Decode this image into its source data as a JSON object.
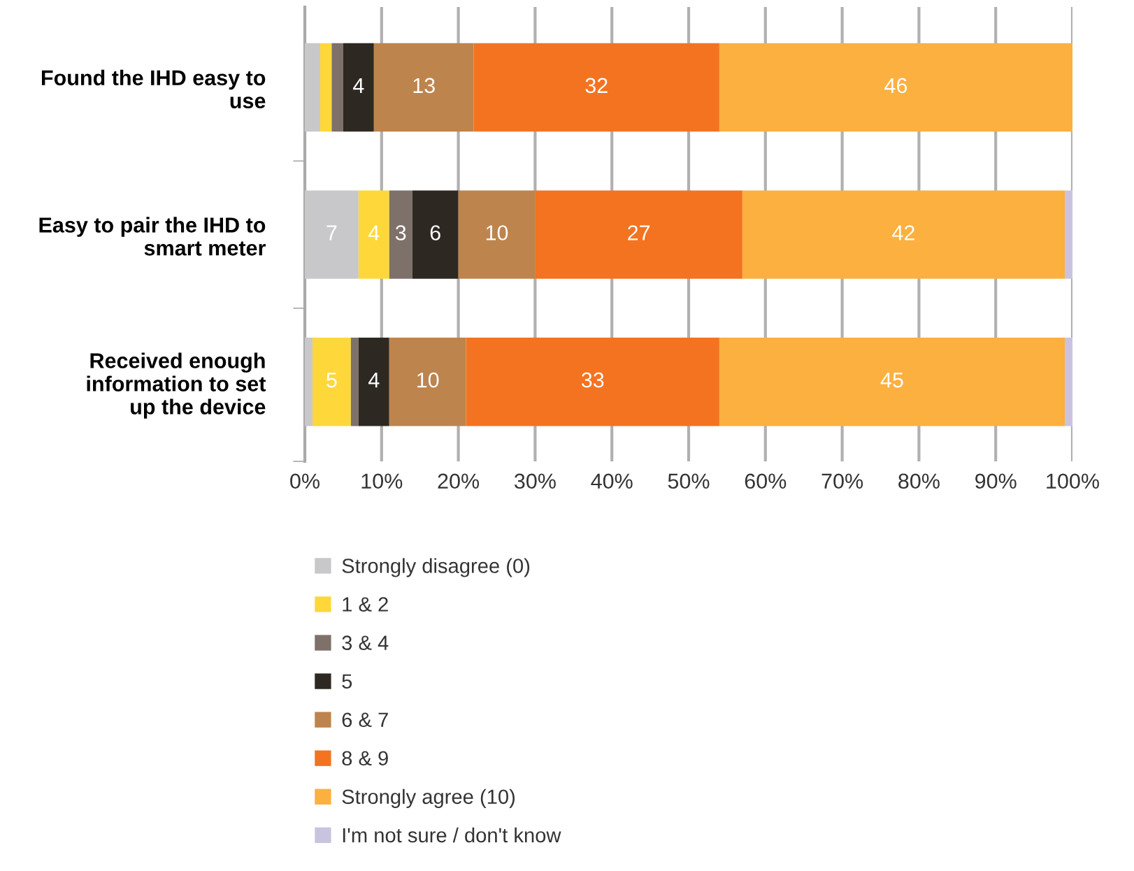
{
  "chart_data": {
    "type": "bar",
    "orientation": "horizontal",
    "stacked": true,
    "categories": [
      "Found the IHD easy to\nuse",
      "Easy to pair the IHD to\nsmart meter",
      "Received enough\ninformation to set\nup the device"
    ],
    "series": [
      {
        "name": "Strongly disagree (0)",
        "color": "#c8c8ca",
        "values": [
          2,
          7,
          1
        ],
        "value_labels": [
          null,
          "7",
          null
        ]
      },
      {
        "name": "1 & 2",
        "color": "#fed83a",
        "values": [
          1.5,
          4,
          5
        ],
        "value_labels": [
          null,
          "4",
          "5"
        ]
      },
      {
        "name": "3 & 4",
        "color": "#7d716a",
        "values": [
          1.5,
          3,
          1
        ],
        "value_labels": [
          null,
          "3",
          null
        ]
      },
      {
        "name": "5",
        "color": "#2d2822",
        "values": [
          4,
          6,
          4
        ],
        "value_labels": [
          "4",
          "6",
          "4"
        ]
      },
      {
        "name": "6 & 7",
        "color": "#bd844d",
        "values": [
          13,
          10,
          10
        ],
        "value_labels": [
          "13",
          "10",
          "10"
        ]
      },
      {
        "name": "8 & 9",
        "color": "#f37321",
        "values": [
          32,
          27,
          33
        ],
        "value_labels": [
          "32",
          "27",
          "33"
        ]
      },
      {
        "name": "Strongly agree (10)",
        "color": "#fbb040",
        "values": [
          46,
          42,
          45
        ],
        "value_labels": [
          "46",
          "42",
          "45"
        ]
      },
      {
        "name": "I'm not sure / don't know",
        "color": "#c8c4e0",
        "values": [
          0,
          1,
          1
        ],
        "value_labels": [
          null,
          null,
          null
        ]
      }
    ],
    "xlim": [
      0,
      100
    ],
    "xticks": [
      {
        "value": 0,
        "label": "0%"
      },
      {
        "value": 10,
        "label": "10%"
      },
      {
        "value": 20,
        "label": "20%"
      },
      {
        "value": 30,
        "label": "30%"
      },
      {
        "value": 40,
        "label": "40%"
      },
      {
        "value": 50,
        "label": "50%"
      },
      {
        "value": 60,
        "label": "60%"
      },
      {
        "value": 70,
        "label": "70%"
      },
      {
        "value": 80,
        "label": "80%"
      },
      {
        "value": 90,
        "label": "90%"
      },
      {
        "value": 100,
        "label": "100%"
      }
    ],
    "grid": "x",
    "legend": "bottom"
  }
}
